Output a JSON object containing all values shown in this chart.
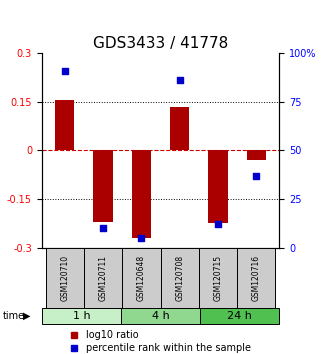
{
  "title": "GDS3433 / 41778",
  "samples": [
    "GSM120710",
    "GSM120711",
    "GSM120648",
    "GSM120708",
    "GSM120715",
    "GSM120716"
  ],
  "groups": [
    {
      "label": "1 h",
      "color": "#c8f0c8",
      "start": 0,
      "end": 2
    },
    {
      "label": "4 h",
      "color": "#90d890",
      "start": 2,
      "end": 4
    },
    {
      "label": "24 h",
      "color": "#50c050",
      "start": 4,
      "end": 6
    }
  ],
  "log10_ratio": [
    0.155,
    -0.22,
    -0.27,
    0.135,
    -0.225,
    -0.03
  ],
  "percentile_rank": [
    91,
    10,
    5,
    86,
    12,
    37
  ],
  "ylim_left": [
    -0.3,
    0.3
  ],
  "ylim_right": [
    0,
    100
  ],
  "yticks_left": [
    -0.3,
    -0.15,
    0,
    0.15,
    0.3
  ],
  "yticks_right": [
    0,
    25,
    50,
    75,
    100
  ],
  "bar_color": "#aa0000",
  "dot_color": "#0000cc",
  "hline_color": "#cc0000",
  "grid_color": "#000000",
  "sample_box_color": "#cccccc",
  "title_fontsize": 11,
  "tick_fontsize": 7,
  "legend_fontsize": 7
}
